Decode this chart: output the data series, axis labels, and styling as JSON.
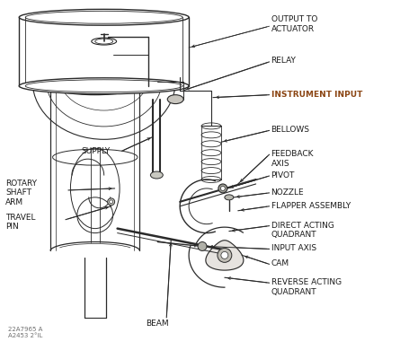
{
  "bg_color": "#ffffff",
  "line_color": "#2a2a2a",
  "text_color": "#1a1a1a",
  "orange_text_color": "#8B4513",
  "watermark": "22A7965 A\nA2453 2°IL",
  "labels": {
    "output_to_actuator": "OUTPUT TO\nACTUATOR",
    "relay": "RELAY",
    "instrument_input": "INSTRUMENT INPUT",
    "bellows": "BELLOWS",
    "feedback_axis": "FEEDBACK\nAXIS",
    "pivot": "PIVOT",
    "nozzle": "NOZZLE",
    "flapper_assembly": "FLAPPER ASSEMBLY",
    "direct_acting_quadrant": "DIRECT ACTING\nQUADRANT",
    "input_axis": "INPUT AXIS",
    "cam": "CAM",
    "reverse_acting_quadrant": "REVERSE ACTING\nQUADRANT",
    "beam": "BEAM",
    "rotary_shaft_arm": "ROTARY\nSHAFT\nARM",
    "travel_pin": "TRAVEL\nPIN",
    "supply": "SUPPLY"
  }
}
